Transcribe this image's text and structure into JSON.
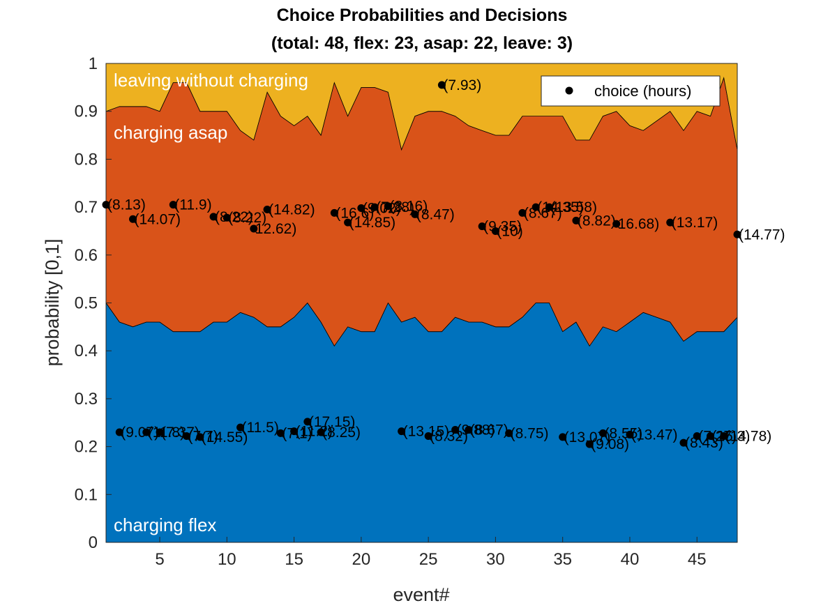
{
  "chart_data": {
    "type": "area",
    "title": "Choice Probabilities and Decisions",
    "subtitle": "(total: 48, flex: 23, asap: 22, leave: 3)",
    "xlabel": "event#",
    "ylabel": "probability [0,1]",
    "xlim": [
      1,
      48
    ],
    "ylim": [
      0,
      1
    ],
    "xticks": [
      5,
      10,
      15,
      20,
      25,
      30,
      35,
      40,
      45
    ],
    "yticks": [
      0,
      0.1,
      0.2,
      0.3,
      0.4,
      0.5,
      0.6,
      0.7,
      0.8,
      0.9,
      1
    ],
    "x": [
      1,
      2,
      3,
      4,
      5,
      6,
      7,
      8,
      9,
      10,
      11,
      12,
      13,
      14,
      15,
      16,
      17,
      18,
      19,
      20,
      21,
      22,
      23,
      24,
      25,
      26,
      27,
      28,
      29,
      30,
      31,
      32,
      33,
      34,
      35,
      36,
      37,
      38,
      39,
      40,
      41,
      42,
      43,
      44,
      45,
      46,
      47,
      48
    ],
    "series": [
      {
        "name": "charging flex",
        "color": "#0072BD",
        "values": [
          0.5,
          0.46,
          0.45,
          0.46,
          0.46,
          0.44,
          0.44,
          0.44,
          0.46,
          0.46,
          0.48,
          0.47,
          0.45,
          0.45,
          0.47,
          0.5,
          0.46,
          0.41,
          0.45,
          0.44,
          0.44,
          0.5,
          0.46,
          0.47,
          0.44,
          0.44,
          0.47,
          0.46,
          0.46,
          0.45,
          0.45,
          0.47,
          0.5,
          0.5,
          0.44,
          0.46,
          0.41,
          0.45,
          0.44,
          0.46,
          0.48,
          0.47,
          0.46,
          0.42,
          0.44,
          0.44,
          0.44,
          0.47
        ]
      },
      {
        "name": "charging asap",
        "color": "#D95319",
        "values": [
          0.4,
          0.45,
          0.46,
          0.45,
          0.44,
          0.52,
          0.52,
          0.46,
          0.44,
          0.44,
          0.38,
          0.37,
          0.49,
          0.44,
          0.4,
          0.39,
          0.39,
          0.55,
          0.44,
          0.51,
          0.51,
          0.44,
          0.36,
          0.42,
          0.46,
          0.46,
          0.42,
          0.41,
          0.4,
          0.4,
          0.4,
          0.42,
          0.39,
          0.39,
          0.45,
          0.38,
          0.43,
          0.44,
          0.46,
          0.41,
          0.38,
          0.41,
          0.44,
          0.44,
          0.46,
          0.45,
          0.53,
          0.35
        ]
      },
      {
        "name": "leaving without charging",
        "color": "#EDB120",
        "values": [
          0.1,
          0.09,
          0.09,
          0.09,
          0.1,
          0.04,
          0.04,
          0.1,
          0.1,
          0.1,
          0.14,
          0.16,
          0.06,
          0.11,
          0.13,
          0.11,
          0.15,
          0.04,
          0.11,
          0.05,
          0.05,
          0.06,
          0.18,
          0.11,
          0.1,
          0.1,
          0.11,
          0.13,
          0.14,
          0.15,
          0.15,
          0.11,
          0.11,
          0.11,
          0.11,
          0.16,
          0.16,
          0.11,
          0.1,
          0.13,
          0.14,
          0.12,
          0.1,
          0.14,
          0.1,
          0.11,
          0.03,
          0.18
        ]
      }
    ],
    "points": {
      "name": "choice (hours)",
      "items": [
        {
          "x": 1,
          "y": 0.705,
          "label": "(8.13)"
        },
        {
          "x": 2,
          "y": 0.23,
          "label": "(9.07)"
        },
        {
          "x": 3,
          "y": 0.675,
          "label": "(14.07)"
        },
        {
          "x": 4,
          "y": 0.23,
          "label": "(11.8)"
        },
        {
          "x": 5,
          "y": 0.23,
          "label": "(7.37)"
        },
        {
          "x": 6,
          "y": 0.705,
          "label": "(11.9)"
        },
        {
          "x": 7,
          "y": 0.222,
          "label": "(7.7)"
        },
        {
          "x": 8,
          "y": 0.22,
          "label": "(14.55)"
        },
        {
          "x": 9,
          "y": 0.68,
          "label": "(8.22)"
        },
        {
          "x": 10,
          "y": 0.678,
          "label": "(8.22)"
        },
        {
          "x": 11,
          "y": 0.24,
          "label": "(11.5)"
        },
        {
          "x": 12,
          "y": 0.655,
          "label": "12.62)"
        },
        {
          "x": 13,
          "y": 0.695,
          "label": "(14.82)"
        },
        {
          "x": 14,
          "y": 0.228,
          "label": "(7.1)"
        },
        {
          "x": 15,
          "y": 0.232,
          "label": "(11.2)"
        },
        {
          "x": 16,
          "y": 0.252,
          "label": "(17.15)"
        },
        {
          "x": 17,
          "y": 0.23,
          "label": "(8.25)"
        },
        {
          "x": 18,
          "y": 0.688,
          "label": "(16.6)"
        },
        {
          "x": 19,
          "y": 0.668,
          "label": "(14.85)"
        },
        {
          "x": 20,
          "y": 0.698,
          "label": "(9.02)"
        },
        {
          "x": 21,
          "y": 0.7,
          "label": "(7.28)"
        },
        {
          "x": 22,
          "y": 0.702,
          "label": "(8.16)"
        },
        {
          "x": 23,
          "y": 0.232,
          "label": "(13.15)"
        },
        {
          "x": 24,
          "y": 0.685,
          "label": "(8.47)"
        },
        {
          "x": 25,
          "y": 0.222,
          "label": "(8.32)"
        },
        {
          "x": 26,
          "y": 0.955,
          "label": "(7.93)"
        },
        {
          "x": 27,
          "y": 0.235,
          "label": "(9.88)"
        },
        {
          "x": 28,
          "y": 0.235,
          "label": "(8.67)"
        },
        {
          "x": 29,
          "y": 0.66,
          "label": "(9.35)"
        },
        {
          "x": 30,
          "y": 0.65,
          "label": "(10)"
        },
        {
          "x": 31,
          "y": 0.228,
          "label": "(8.75)"
        },
        {
          "x": 32,
          "y": 0.688,
          "label": "(8.67)"
        },
        {
          "x": 33,
          "y": 0.7,
          "label": "(14.35)"
        },
        {
          "x": 34,
          "y": 0.7,
          "label": "(13.58)"
        },
        {
          "x": 35,
          "y": 0.22,
          "label": "(13.07)"
        },
        {
          "x": 36,
          "y": 0.672,
          "label": "(8.82)"
        },
        {
          "x": 37,
          "y": 0.205,
          "label": "(9.08)"
        },
        {
          "x": 38,
          "y": 0.228,
          "label": "(8.55)"
        },
        {
          "x": 39,
          "y": 0.665,
          "label": "16.68)"
        },
        {
          "x": 40,
          "y": 0.225,
          "label": "(13.47)"
        },
        {
          "x": 43,
          "y": 0.668,
          "label": "(13.17)"
        },
        {
          "x": 44,
          "y": 0.208,
          "label": "(8.43)"
        },
        {
          "x": 45,
          "y": 0.222,
          "label": "(7.27)"
        },
        {
          "x": 46,
          "y": 0.222,
          "label": "(15.3)"
        },
        {
          "x": 47,
          "y": 0.222,
          "label": "(14.78)"
        },
        {
          "x": 48,
          "y": 0.643,
          "label": "(14.77)"
        }
      ]
    },
    "legend": {
      "position": "top-right",
      "entries": [
        "choice (hours)"
      ]
    },
    "grid": false
  }
}
